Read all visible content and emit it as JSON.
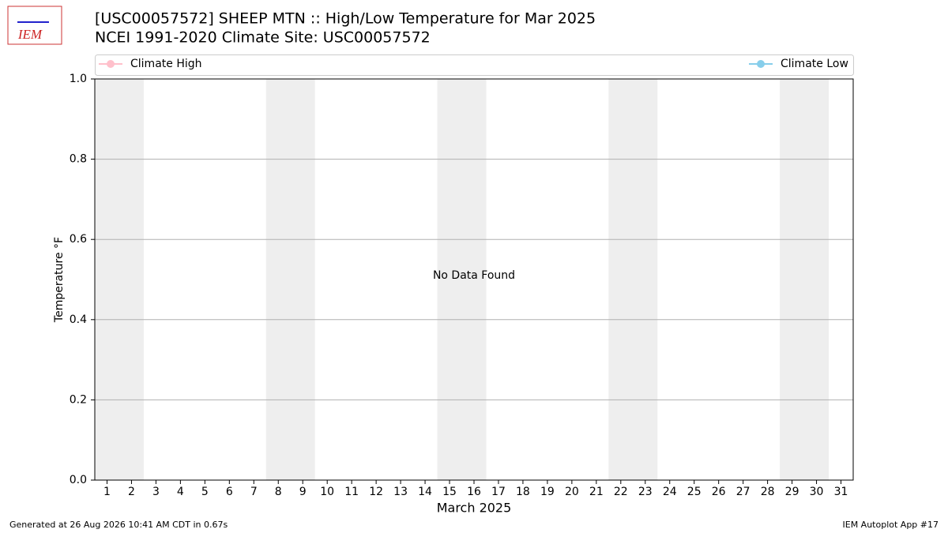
{
  "chart_data": {
    "type": "line",
    "logo": "IEM",
    "title": "[USC00057572] SHEEP MTN :: High/Low Temperature for Mar 2025",
    "subtitle": "NCEI 1991-2020 Climate Site: USC00057572",
    "annotation": "No Data Found",
    "xlabel": "March 2025",
    "ylabel": "Temperature °F",
    "footer_left": "Generated at 26 Aug 2026 10:41 AM CDT in 0.67s",
    "footer_right": "IEM Autoplot App #17",
    "x": [
      1,
      2,
      3,
      4,
      5,
      6,
      7,
      8,
      9,
      10,
      11,
      12,
      13,
      14,
      15,
      16,
      17,
      18,
      19,
      20,
      21,
      22,
      23,
      24,
      25,
      26,
      27,
      28,
      29,
      30,
      31
    ],
    "xlim": [
      0.5,
      31.5
    ],
    "xticks": [
      1,
      2,
      3,
      4,
      5,
      6,
      7,
      8,
      9,
      10,
      11,
      12,
      13,
      14,
      15,
      16,
      17,
      18,
      19,
      20,
      21,
      22,
      23,
      24,
      25,
      26,
      27,
      28,
      29,
      30,
      31
    ],
    "ylim": [
      0,
      1
    ],
    "yticks": [
      {
        "value": 0,
        "label": "0.0"
      },
      0.2,
      0.4,
      0.6,
      0.8,
      {
        "value": 1,
        "label": "1.0"
      }
    ],
    "grid": true,
    "shaded_spans": [
      [
        1,
        2
      ],
      [
        8,
        9
      ],
      [
        15,
        16
      ],
      [
        22,
        23
      ],
      [
        29,
        30
      ]
    ],
    "shade_color": "#eeeeee",
    "series": [
      {
        "name": "Climate High",
        "color": "#ffc0cb",
        "values": [
          null,
          null,
          null,
          null,
          null,
          null,
          null,
          null,
          null,
          null,
          null,
          null,
          null,
          null,
          null,
          null,
          null,
          null,
          null,
          null,
          null,
          null,
          null,
          null,
          null,
          null,
          null,
          null,
          null,
          null,
          null
        ]
      },
      {
        "name": "Climate Low",
        "color": "#87ceeb",
        "values": [
          null,
          null,
          null,
          null,
          null,
          null,
          null,
          null,
          null,
          null,
          null,
          null,
          null,
          null,
          null,
          null,
          null,
          null,
          null,
          null,
          null,
          null,
          null,
          null,
          null,
          null,
          null,
          null,
          null,
          null,
          null
        ]
      }
    ]
  }
}
